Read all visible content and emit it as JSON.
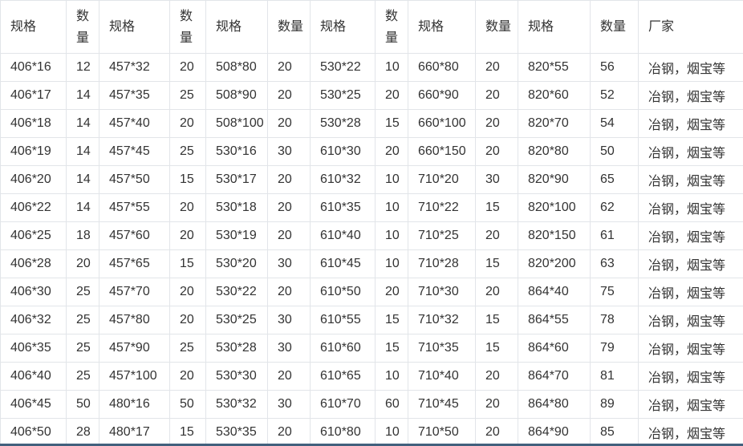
{
  "colors": {
    "text": "#333333",
    "border": "#e2e5e9",
    "bottom_bar": "#42607d",
    "background": "#ffffff"
  },
  "table": {
    "headers": [
      "规格",
      "数量",
      "规格",
      "数量",
      "规格",
      "数量",
      "规格",
      "数量",
      "规格",
      "数量",
      "规格",
      "数量",
      "厂家"
    ],
    "rows": [
      [
        "406*16",
        "12",
        "457*32",
        "20",
        "508*80",
        "20",
        "530*22",
        "10",
        "660*80",
        "20",
        "820*55",
        "56",
        "冶钢，烟宝等"
      ],
      [
        "406*17",
        "14",
        "457*35",
        "25",
        "508*90",
        "20",
        "530*25",
        "20",
        "660*90",
        "20",
        "820*60",
        "52",
        "冶钢，烟宝等"
      ],
      [
        "406*18",
        "14",
        "457*40",
        "20",
        "508*100",
        "20",
        "530*28",
        "15",
        "660*100",
        "20",
        "820*70",
        "54",
        "冶钢，烟宝等"
      ],
      [
        "406*19",
        "14",
        "457*45",
        "25",
        "530*16",
        "30",
        "610*30",
        "20",
        "660*150",
        "20",
        "820*80",
        "50",
        "冶钢，烟宝等"
      ],
      [
        "406*20",
        "14",
        "457*50",
        "15",
        "530*17",
        "20",
        "610*32",
        "10",
        "710*20",
        "30",
        "820*90",
        "65",
        "冶钢，烟宝等"
      ],
      [
        "406*22",
        "14",
        "457*55",
        "20",
        "530*18",
        "20",
        "610*35",
        "10",
        "710*22",
        "15",
        "820*100",
        "62",
        "冶钢，烟宝等"
      ],
      [
        "406*25",
        "18",
        "457*60",
        "20",
        "530*19",
        "20",
        "610*40",
        "10",
        "710*25",
        "20",
        "820*150",
        "61",
        "冶钢，烟宝等"
      ],
      [
        "406*28",
        "20",
        "457*65",
        "15",
        "530*20",
        "30",
        "610*45",
        "10",
        "710*28",
        "15",
        "820*200",
        "63",
        "冶钢，烟宝等"
      ],
      [
        "406*30",
        "25",
        "457*70",
        "20",
        "530*22",
        "20",
        "610*50",
        "20",
        "710*30",
        "20",
        "864*40",
        "75",
        "冶钢，烟宝等"
      ],
      [
        "406*32",
        "25",
        "457*80",
        "20",
        "530*25",
        "30",
        "610*55",
        "15",
        "710*32",
        "15",
        "864*55",
        "78",
        "冶钢，烟宝等"
      ],
      [
        "406*35",
        "25",
        "457*90",
        "25",
        "530*28",
        "30",
        "610*60",
        "15",
        "710*35",
        "15",
        "864*60",
        "79",
        "冶钢，烟宝等"
      ],
      [
        "406*40",
        "25",
        "457*100",
        "20",
        "530*30",
        "20",
        "610*65",
        "10",
        "710*40",
        "20",
        "864*70",
        "81",
        "冶钢，烟宝等"
      ],
      [
        "406*45",
        "50",
        "480*16",
        "50",
        "530*32",
        "30",
        "610*70",
        "60",
        "710*45",
        "20",
        "864*80",
        "89",
        "冶钢，烟宝等"
      ],
      [
        "406*50",
        "28",
        "480*17",
        "15",
        "530*35",
        "20",
        "610*80",
        "10",
        "710*50",
        "20",
        "864*90",
        "85",
        "冶钢，烟宝等"
      ]
    ]
  }
}
